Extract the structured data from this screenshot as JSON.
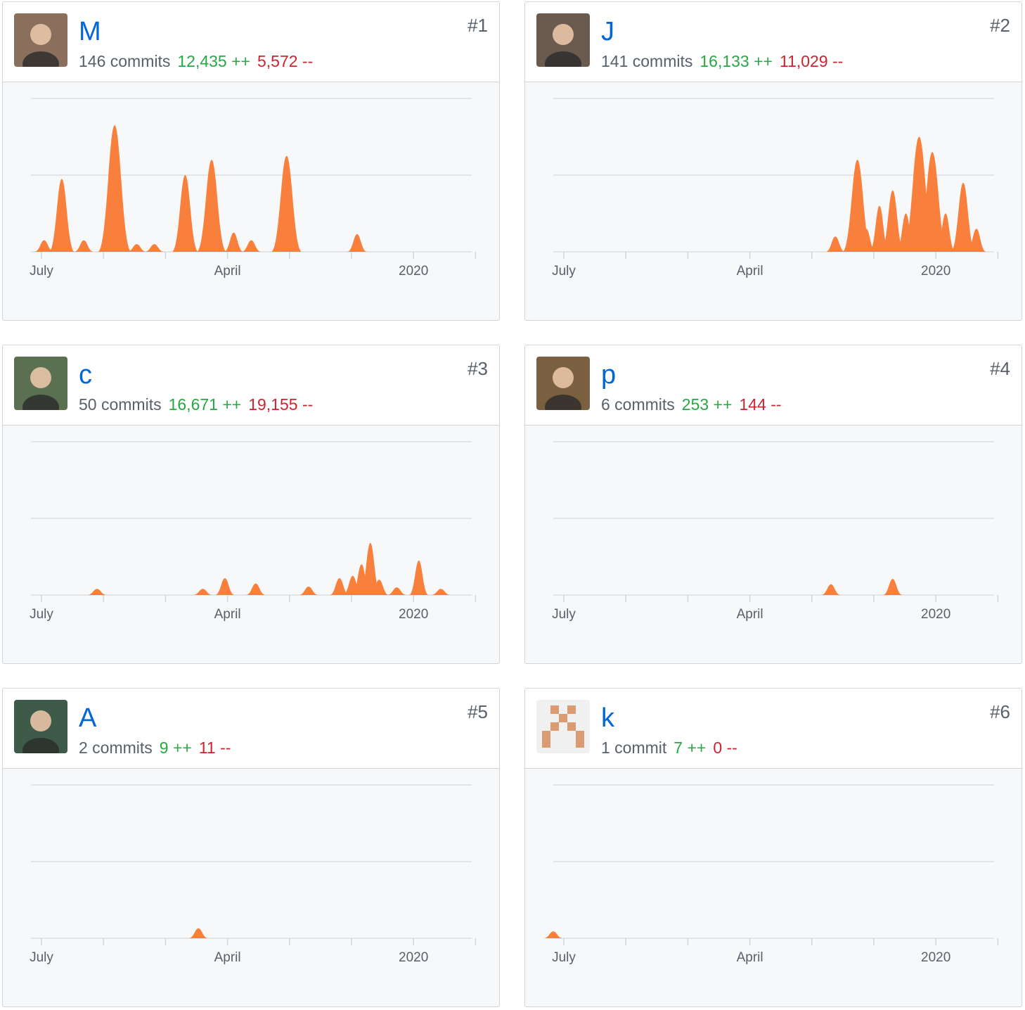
{
  "contributors": [
    {
      "name": "M",
      "commits": "146 commits",
      "additions": "12,435 ++",
      "deletions": "5,572 --",
      "rank": "#1",
      "avatar": "avatar-photo-icon",
      "avatar_color": "#8a6f5c",
      "chart_data": {
        "type": "area",
        "x": [
          0.03,
          0.07,
          0.12,
          0.19,
          0.24,
          0.28,
          0.35,
          0.41,
          0.46,
          0.5,
          0.58,
          0.74
        ],
        "values": [
          1.5,
          9.5,
          1.5,
          16.5,
          1,
          1,
          10,
          12,
          2.5,
          1.5,
          12.5,
          2.3
        ],
        "ylim": [
          0,
          20
        ],
        "y_ticks": [
          "20",
          "10"
        ],
        "x_tick_labels": [
          "July",
          "April",
          "2020"
        ],
        "color": "#f9803c"
      }
    },
    {
      "name": "J",
      "commits": "141 commits",
      "additions": "16,133 ++",
      "deletions": "11,029 --",
      "rank": "#2",
      "avatar": "avatar-dog-icon",
      "avatar_color": "#6b5a4e",
      "chart_data": {
        "type": "area",
        "x": [
          0.64,
          0.69,
          0.71,
          0.74,
          0.77,
          0.8,
          0.83,
          0.86,
          0.89,
          0.93,
          0.96
        ],
        "values": [
          2,
          12,
          3,
          6,
          8,
          5,
          15,
          13,
          5,
          9,
          3
        ],
        "ylim": [
          0,
          20
        ],
        "y_ticks": [
          "20",
          "10"
        ],
        "x_tick_labels": [
          "July",
          "April",
          "2020"
        ],
        "color": "#f9803c"
      }
    },
    {
      "name": "c",
      "commits": "50 commits",
      "additions": "16,671 ++",
      "deletions": "19,155 --",
      "rank": "#3",
      "avatar": "avatar-photo-icon",
      "avatar_color": "#5a7050",
      "chart_data": {
        "type": "area",
        "x": [
          0.15,
          0.39,
          0.44,
          0.51,
          0.63,
          0.7,
          0.73,
          0.75,
          0.77,
          0.79,
          0.83,
          0.88,
          0.93
        ],
        "values": [
          0.8,
          0.8,
          2.2,
          1.5,
          1.1,
          2.2,
          2.5,
          4,
          6.8,
          2,
          1,
          4.5,
          0.8
        ],
        "ylim": [
          0,
          20
        ],
        "y_ticks": [
          "20",
          "10"
        ],
        "x_tick_labels": [
          "July",
          "April",
          "2020"
        ],
        "color": "#f9803c"
      }
    },
    {
      "name": "p",
      "commits": "6 commits",
      "additions": "253 ++",
      "deletions": "144 --",
      "rank": "#4",
      "avatar": "avatar-photo-icon",
      "avatar_color": "#7a6040",
      "chart_data": {
        "type": "area",
        "x": [
          0.63,
          0.77
        ],
        "values": [
          1.4,
          2.1
        ],
        "ylim": [
          0,
          20
        ],
        "y_ticks": [
          "20",
          "10"
        ],
        "x_tick_labels": [
          "July",
          "April",
          "2020"
        ],
        "color": "#f9803c"
      }
    },
    {
      "name": "A",
      "commits": "2 commits",
      "additions": "9 ++",
      "deletions": "11 --",
      "rank": "#5",
      "avatar": "avatar-photo-icon",
      "avatar_color": "#3e5a48",
      "chart_data": {
        "type": "area",
        "x": [
          0.38
        ],
        "values": [
          1.3
        ],
        "ylim": [
          0,
          20
        ],
        "y_ticks": [
          "20",
          "10"
        ],
        "x_tick_labels": [
          "July",
          "April",
          "2020"
        ],
        "color": "#f9803c"
      }
    },
    {
      "name": "k",
      "commits": "1 commit",
      "additions": "7 ++",
      "deletions": "0 --",
      "rank": "#6",
      "avatar": "identicon-icon",
      "avatar_color": "#da9b73",
      "chart_data": {
        "type": "area",
        "x": [
          0.0
        ],
        "values": [
          0.9
        ],
        "ylim": [
          0,
          20
        ],
        "y_ticks": [
          "20",
          "10"
        ],
        "x_tick_labels": [
          "July",
          "April",
          "2020"
        ],
        "color": "#f9803c"
      }
    }
  ]
}
